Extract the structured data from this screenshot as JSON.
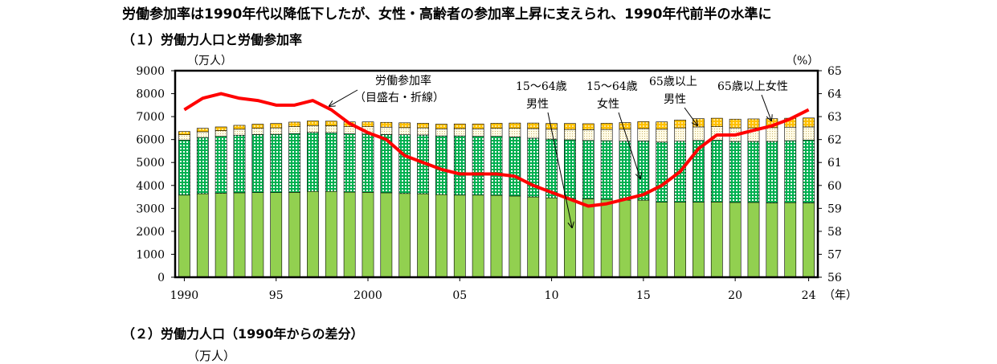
{
  "headline": "労働参加率は1990年代以降低下したが、女性・高齢者の参加率上昇に支えられ、1990年代前半の水準に",
  "section1_title": "（１）労働力人口と労働参加率",
  "section2_title": "（２）労働力人口（1990年からの差分）",
  "section2_unit": "（万人）",
  "chart_data": {
    "type": "bar",
    "stacked": true,
    "title": "（１）労働力人口と労働参加率",
    "y_left_label": "（万人）",
    "y_right_label": "（%）",
    "x_unit_label": "（年）",
    "y_left_lim": [
      0,
      9000
    ],
    "y_right_lim": [
      56,
      65
    ],
    "y_left_ticks": [
      "0",
      "1000",
      "2000",
      "3000",
      "4000",
      "5000",
      "6000",
      "7000",
      "8000",
      "9000"
    ],
    "y_right_ticks": [
      "56",
      "57",
      "58",
      "59",
      "60",
      "61",
      "62",
      "63",
      "64",
      "65"
    ],
    "x_tick_labels": [
      {
        "year": 1990,
        "label": "1990"
      },
      {
        "year": 1995,
        "label": "95"
      },
      {
        "year": 2000,
        "label": "2000"
      },
      {
        "year": 2005,
        "label": "05"
      },
      {
        "year": 2010,
        "label": "10"
      },
      {
        "year": 2015,
        "label": "15"
      },
      {
        "year": 2020,
        "label": "20"
      },
      {
        "year": 2024,
        "label": "24"
      }
    ],
    "categories": [
      1990,
      1991,
      1992,
      1993,
      1994,
      1995,
      1996,
      1997,
      1998,
      1999,
      2000,
      2001,
      2002,
      2003,
      2004,
      2005,
      2006,
      2007,
      2008,
      2009,
      2010,
      2011,
      2012,
      2013,
      2014,
      2015,
      2016,
      2017,
      2018,
      2019,
      2020,
      2021,
      2022,
      2023,
      2024
    ],
    "series": [
      {
        "name": "15〜64歳男性",
        "color": "#92d050",
        "pattern": "solid",
        "values": [
          3580,
          3640,
          3660,
          3680,
          3690,
          3690,
          3700,
          3740,
          3740,
          3710,
          3700,
          3680,
          3650,
          3640,
          3600,
          3580,
          3580,
          3570,
          3540,
          3500,
          3460,
          3430,
          3420,
          3390,
          3360,
          3360,
          3270,
          3270,
          3270,
          3280,
          3260,
          3260,
          3240,
          3250,
          3240
        ]
      },
      {
        "name": "15〜64歳女性",
        "color": "#00b050",
        "pattern": "dots",
        "values": [
          2400,
          2450,
          2480,
          2510,
          2530,
          2540,
          2560,
          2570,
          2560,
          2540,
          2540,
          2540,
          2560,
          2560,
          2560,
          2580,
          2560,
          2570,
          2570,
          2560,
          2560,
          2560,
          2540,
          2560,
          2570,
          2580,
          2620,
          2660,
          2690,
          2690,
          2660,
          2660,
          2680,
          2700,
          2740
        ]
      },
      {
        "name": "65歳以上男性",
        "color": "#fff2cc",
        "pattern": "fine-dots",
        "values": [
          230,
          250,
          250,
          260,
          270,
          280,
          300,
          300,
          300,
          310,
          320,
          320,
          310,
          310,
          310,
          320,
          330,
          350,
          380,
          420,
          430,
          450,
          470,
          490,
          520,
          540,
          560,
          580,
          590,
          590,
          590,
          590,
          600,
          590,
          570
        ]
      },
      {
        "name": "65歳以上女性",
        "color": "#ffc000",
        "pattern": "grid",
        "values": [
          140,
          150,
          160,
          170,
          180,
          190,
          200,
          200,
          200,
          210,
          210,
          210,
          210,
          200,
          200,
          200,
          210,
          220,
          230,
          240,
          250,
          260,
          260,
          270,
          290,
          300,
          320,
          340,
          360,
          370,
          380,
          390,
          390,
          390,
          390
        ]
      },
      {
        "name": "労働参加率",
        "axis": "right",
        "color": "#ff0000",
        "type": "line",
        "values": [
          63.3,
          63.8,
          64.0,
          63.8,
          63.7,
          63.5,
          63.5,
          63.7,
          63.3,
          62.7,
          62.3,
          62.0,
          61.3,
          61.0,
          60.7,
          60.5,
          60.5,
          60.5,
          60.4,
          60.0,
          59.7,
          59.4,
          59.1,
          59.2,
          59.4,
          59.6,
          60.0,
          60.6,
          61.6,
          62.2,
          62.2,
          62.4,
          62.6,
          62.9,
          63.3
        ]
      }
    ],
    "annotations": [
      {
        "text_lines": [
          "労働参加率",
          "（目盛右・折線）"
        ]
      },
      {
        "text_lines": [
          "15〜64歳",
          "男性"
        ]
      },
      {
        "text_lines": [
          "15〜64歳",
          "女性"
        ]
      },
      {
        "text_lines": [
          "65歳以上",
          "男性"
        ]
      },
      {
        "text_lines": [
          "65歳以上女性"
        ]
      }
    ],
    "grid": false,
    "legend": "none"
  }
}
